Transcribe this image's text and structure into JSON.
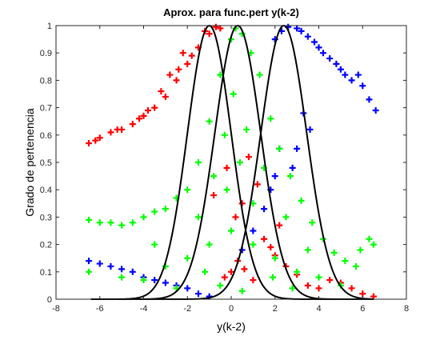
{
  "colors": {
    "red": "#ff0000",
    "blue": "#0000ff",
    "green": "#00ff00",
    "black": "#000000"
  },
  "chart_data": {
    "type": "scatter",
    "title": "Aprox. para func.pert y(k-2)",
    "xlabel": "y(k-2)",
    "ylabel": "Grado de pertenencia",
    "xlim": [
      -8,
      8
    ],
    "ylim": [
      0,
      1
    ],
    "xticks": [
      "-8",
      "-6",
      "-4",
      "-2",
      "0",
      "2",
      "4",
      "6",
      "8"
    ],
    "yticks": [
      "0",
      "0.1",
      "0.2",
      "0.3",
      "0.4",
      "0.5",
      "0.6",
      "0.7",
      "0.8",
      "0.9",
      "1"
    ],
    "grid": false,
    "legend": "none",
    "marker": "+",
    "scatter_series": [
      {
        "color": "red",
        "points": [
          [
            -6.5,
            0.57
          ],
          [
            -6.0,
            0.59
          ],
          [
            -5.5,
            0.61
          ],
          [
            -5.0,
            0.62
          ],
          [
            -4.5,
            0.64
          ],
          [
            -4.0,
            0.67
          ],
          [
            -3.5,
            0.7
          ],
          [
            -3.0,
            0.74
          ],
          [
            -2.5,
            0.8
          ],
          [
            -2.0,
            0.86
          ],
          [
            -1.5,
            0.92
          ],
          [
            -1.0,
            0.97
          ],
          [
            -0.7,
            0.995
          ],
          [
            -0.5,
            0.99
          ],
          [
            -1.2,
            0.98
          ],
          [
            -2.2,
            0.9
          ],
          [
            -2.8,
            0.82
          ],
          [
            -3.2,
            0.76
          ],
          [
            -4.2,
            0.66
          ],
          [
            -5.2,
            0.62
          ],
          [
            -6.2,
            0.58
          ],
          [
            -3.8,
            0.69
          ],
          [
            -2.4,
            0.84
          ],
          [
            -1.8,
            0.89
          ],
          [
            0.0,
            0.1
          ],
          [
            0.3,
            0.14
          ],
          [
            0.6,
            0.11
          ],
          [
            -0.3,
            0.08
          ],
          [
            1.0,
            0.07
          ],
          [
            1.5,
            0.22
          ],
          [
            2.0,
            0.16
          ],
          [
            2.5,
            0.12
          ],
          [
            3.0,
            0.09
          ],
          [
            3.5,
            0.05
          ],
          [
            4.0,
            0.04
          ],
          [
            4.5,
            0.07
          ],
          [
            5.0,
            0.06
          ],
          [
            5.5,
            0.04
          ],
          [
            6.0,
            0.02
          ],
          [
            6.5,
            0.01
          ],
          [
            -0.2,
            0.48
          ],
          [
            0.5,
            0.35
          ],
          [
            1.2,
            0.42
          ],
          [
            0.8,
            0.52
          ],
          [
            -0.8,
            0.38
          ],
          [
            2.2,
            0.27
          ],
          [
            1.8,
            0.19
          ],
          [
            0.2,
            0.3
          ]
        ]
      },
      {
        "color": "blue",
        "points": [
          [
            6.6,
            0.69
          ],
          [
            6.3,
            0.73
          ],
          [
            6.0,
            0.78
          ],
          [
            5.5,
            0.8
          ],
          [
            5.0,
            0.84
          ],
          [
            4.5,
            0.88
          ],
          [
            4.0,
            0.92
          ],
          [
            3.5,
            0.96
          ],
          [
            3.0,
            0.99
          ],
          [
            2.6,
            0.995
          ],
          [
            2.3,
            0.98
          ],
          [
            2.0,
            0.95
          ],
          [
            5.8,
            0.82
          ],
          [
            4.8,
            0.86
          ],
          [
            3.8,
            0.94
          ],
          [
            3.2,
            0.98
          ],
          [
            4.2,
            0.9
          ],
          [
            5.2,
            0.82
          ],
          [
            -6.5,
            0.14
          ],
          [
            -6.0,
            0.13
          ],
          [
            -5.5,
            0.12
          ],
          [
            -5.0,
            0.11
          ],
          [
            -4.5,
            0.1
          ],
          [
            -4.0,
            0.08
          ],
          [
            -3.5,
            0.07
          ],
          [
            -3.0,
            0.06
          ],
          [
            -2.5,
            0.05
          ],
          [
            -2.0,
            0.04
          ],
          [
            -1.5,
            0.02
          ],
          [
            -1.0,
            0.01
          ],
          [
            1.0,
            0.25
          ],
          [
            1.5,
            0.33
          ],
          [
            2.0,
            0.45
          ],
          [
            0.5,
            0.18
          ],
          [
            2.2,
            0.55
          ],
          [
            1.8,
            0.4
          ],
          [
            3.0,
            0.55
          ],
          [
            2.8,
            0.48
          ],
          [
            3.3,
            0.68
          ],
          [
            3.6,
            0.62
          ]
        ]
      },
      {
        "color": "green",
        "points": [
          [
            -6.5,
            0.29
          ],
          [
            -6.0,
            0.28
          ],
          [
            -5.5,
            0.28
          ],
          [
            -5.0,
            0.27
          ],
          [
            -4.5,
            0.28
          ],
          [
            -4.0,
            0.3
          ],
          [
            -3.5,
            0.32
          ],
          [
            -3.0,
            0.33
          ],
          [
            -2.5,
            0.37
          ],
          [
            -2.0,
            0.4
          ],
          [
            -1.5,
            0.5
          ],
          [
            -1.0,
            0.65
          ],
          [
            -0.5,
            0.82
          ],
          [
            0.0,
            0.95
          ],
          [
            0.2,
            0.99
          ],
          [
            0.5,
            0.97
          ],
          [
            0.9,
            0.9
          ],
          [
            1.3,
            0.82
          ],
          [
            1.8,
            0.66
          ],
          [
            2.2,
            0.55
          ],
          [
            2.7,
            0.45
          ],
          [
            3.2,
            0.36
          ],
          [
            3.7,
            0.28
          ],
          [
            4.2,
            0.22
          ],
          [
            4.7,
            0.17
          ],
          [
            5.2,
            0.14
          ],
          [
            5.7,
            0.12
          ],
          [
            6.3,
            0.22
          ],
          [
            6.5,
            0.2
          ],
          [
            5.9,
            0.18
          ],
          [
            -6.5,
            0.1
          ],
          [
            -5.0,
            0.08
          ],
          [
            -4.0,
            0.07
          ],
          [
            -3.0,
            0.12
          ],
          [
            -2.0,
            0.15
          ],
          [
            -1.0,
            0.2
          ],
          [
            0.0,
            0.25
          ],
          [
            1.0,
            0.2
          ],
          [
            2.0,
            0.15
          ],
          [
            3.0,
            0.1
          ],
          [
            4.0,
            0.08
          ],
          [
            5.0,
            0.05
          ],
          [
            -0.3,
            0.6
          ],
          [
            0.7,
            0.62
          ],
          [
            -0.8,
            0.45
          ],
          [
            1.5,
            0.48
          ],
          [
            -1.5,
            0.3
          ],
          [
            2.5,
            0.3
          ],
          [
            0.1,
            0.75
          ],
          [
            -0.2,
            0.4
          ],
          [
            0.4,
            0.5
          ],
          [
            1.0,
            0.35
          ],
          [
            -1.2,
            0.1
          ],
          [
            1.9,
            0.08
          ],
          [
            -0.5,
            0.05
          ],
          [
            0.5,
            0.03
          ],
          [
            -2.5,
            0.04
          ],
          [
            2.8,
            0.04
          ],
          [
            -3.5,
            0.2
          ],
          [
            3.5,
            0.18
          ]
        ]
      }
    ],
    "lines": [
      {
        "color": "black",
        "center": -1.0,
        "sigma": 1.0
      },
      {
        "color": "black",
        "center": 0.3,
        "sigma": 1.05
      },
      {
        "color": "black",
        "center": 2.4,
        "sigma": 1.05
      }
    ]
  }
}
